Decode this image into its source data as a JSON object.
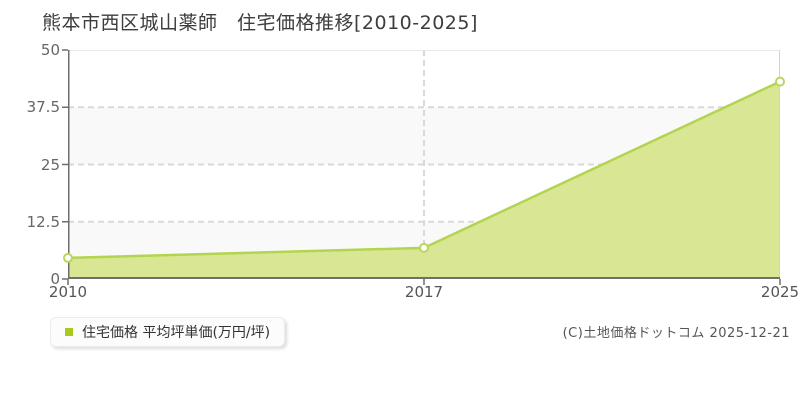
{
  "title": "熊本市西区城山薬師　住宅価格推移[2010-2025]",
  "legend": {
    "label": "住宅価格 平均坪単価(万円/坪)",
    "marker_color": "#a6ca1f"
  },
  "footer": {
    "copyright": "(C)土地価格ドットコム 2025-12-21"
  },
  "chart_data": {
    "type": "area",
    "title": "熊本市西区城山薬師 住宅価格推移[2010-2025]",
    "categories": [
      "2010",
      "2017",
      "2025"
    ],
    "series": [
      {
        "name": "住宅価格 平均坪単価(万円/坪)",
        "values": [
          4.6,
          6.8,
          43.1
        ]
      }
    ],
    "xlabel": "",
    "ylabel": "平均坪単価(万円/坪)",
    "ylim": [
      0,
      50
    ],
    "yticks": [
      0,
      12.5,
      25,
      37.5,
      50
    ],
    "xticks": [
      "2010",
      "2017",
      "2025"
    ],
    "x_spacing": "equal",
    "grid": true,
    "grid_style": "dashed",
    "legend_position": "bottom-left",
    "colors": {
      "line": "#b3d44f",
      "fill": "#d9e795",
      "marker_fill": "#ffffff",
      "marker_stroke": "#b9d65e",
      "grid": "#d9d9d9",
      "axis": "#6e6e6e",
      "band_a": "#ffffff",
      "band_b": "#f9f9f9",
      "plot_top_border": "#e9e9e9",
      "plot_right_border": "#d2d2d2"
    }
  }
}
